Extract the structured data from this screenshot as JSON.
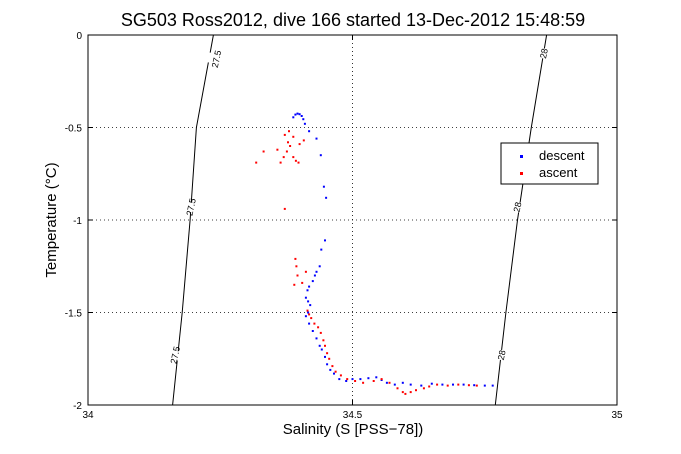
{
  "chart_data": {
    "type": "scatter",
    "title": "SG503 Ross2012, dive 166 started 13-Dec-2012 15:48:59",
    "xlabel": "Salinity (S [PSS−78])",
    "ylabel": "Temperature (°C)",
    "xlim": [
      34,
      35
    ],
    "ylim": [
      -2,
      0
    ],
    "x_ticks": [
      "34",
      "34.5",
      "35"
    ],
    "y_ticks": [
      "0",
      "-0.5",
      "-1",
      "-1.5",
      "-2"
    ],
    "grid": true,
    "legend_position": "right",
    "series": [
      {
        "name": "descent",
        "color": "#0000ff",
        "marker": "dot",
        "points": [
          [
            34.388,
            -0.445
          ],
          [
            34.392,
            -0.43
          ],
          [
            34.396,
            -0.425
          ],
          [
            34.4,
            -0.428
          ],
          [
            34.404,
            -0.438
          ],
          [
            34.407,
            -0.455
          ],
          [
            34.41,
            -0.48
          ],
          [
            34.418,
            -0.52
          ],
          [
            34.432,
            -0.56
          ],
          [
            34.44,
            -0.65
          ],
          [
            34.446,
            -0.82
          ],
          [
            34.45,
            -0.88
          ],
          [
            34.448,
            -1.11
          ],
          [
            34.441,
            -1.16
          ],
          [
            34.438,
            -1.25
          ],
          [
            34.432,
            -1.28
          ],
          [
            34.429,
            -1.3
          ],
          [
            34.425,
            -1.33
          ],
          [
            34.418,
            -1.36
          ],
          [
            34.415,
            -1.38
          ],
          [
            34.412,
            -1.42
          ],
          [
            34.416,
            -1.44
          ],
          [
            34.42,
            -1.46
          ],
          [
            34.416,
            -1.5
          ],
          [
            34.412,
            -1.52
          ],
          [
            34.418,
            -1.56
          ],
          [
            34.425,
            -1.6
          ],
          [
            34.432,
            -1.64
          ],
          [
            34.438,
            -1.68
          ],
          [
            34.442,
            -1.7
          ],
          [
            34.448,
            -1.74
          ],
          [
            34.452,
            -1.78
          ],
          [
            34.458,
            -1.81
          ],
          [
            34.465,
            -1.83
          ],
          [
            34.475,
            -1.86
          ],
          [
            34.488,
            -1.87
          ],
          [
            34.5,
            -1.86
          ],
          [
            34.515,
            -1.86
          ],
          [
            34.53,
            -1.855
          ],
          [
            34.545,
            -1.85
          ],
          [
            34.555,
            -1.865
          ],
          [
            34.565,
            -1.88
          ],
          [
            34.58,
            -1.89
          ],
          [
            34.595,
            -1.88
          ],
          [
            34.61,
            -1.89
          ],
          [
            34.63,
            -1.895
          ],
          [
            34.65,
            -1.885
          ],
          [
            34.67,
            -1.89
          ],
          [
            34.69,
            -1.89
          ],
          [
            34.71,
            -1.89
          ],
          [
            34.73,
            -1.893
          ],
          [
            34.75,
            -1.895
          ],
          [
            34.765,
            -1.895
          ]
        ]
      },
      {
        "name": "ascent",
        "color": "#ff0000",
        "marker": "dot",
        "points": [
          [
            34.364,
            -0.69
          ],
          [
            34.37,
            -0.66
          ],
          [
            34.358,
            -0.62
          ],
          [
            34.378,
            -0.58
          ],
          [
            34.372,
            -0.54
          ],
          [
            34.38,
            -0.52
          ],
          [
            34.388,
            -0.55
          ],
          [
            34.382,
            -0.6
          ],
          [
            34.376,
            -0.63
          ],
          [
            34.388,
            -0.66
          ],
          [
            34.393,
            -0.68
          ],
          [
            34.4,
            -0.59
          ],
          [
            34.318,
            -0.69
          ],
          [
            34.332,
            -0.63
          ],
          [
            34.408,
            -0.57
          ],
          [
            34.398,
            -0.69
          ],
          [
            34.372,
            -0.94
          ],
          [
            34.392,
            -1.21
          ],
          [
            34.394,
            -1.25
          ],
          [
            34.396,
            -1.3
          ],
          [
            34.39,
            -1.35
          ],
          [
            34.405,
            -1.34
          ],
          [
            34.412,
            -1.28
          ],
          [
            34.415,
            -1.49
          ],
          [
            34.418,
            -1.51
          ],
          [
            34.422,
            -1.53
          ],
          [
            34.428,
            -1.56
          ],
          [
            34.435,
            -1.58
          ],
          [
            34.44,
            -1.61
          ],
          [
            34.445,
            -1.65
          ],
          [
            34.448,
            -1.68
          ],
          [
            34.452,
            -1.72
          ],
          [
            34.456,
            -1.75
          ],
          [
            34.462,
            -1.79
          ],
          [
            34.468,
            -1.82
          ],
          [
            34.478,
            -1.84
          ],
          [
            34.49,
            -1.86
          ],
          [
            34.505,
            -1.87
          ],
          [
            34.52,
            -1.88
          ],
          [
            34.54,
            -1.87
          ],
          [
            34.555,
            -1.86
          ],
          [
            34.57,
            -1.88
          ],
          [
            34.585,
            -1.91
          ],
          [
            34.595,
            -1.93
          ],
          [
            34.6,
            -1.94
          ],
          [
            34.61,
            -1.93
          ],
          [
            34.62,
            -1.92
          ],
          [
            34.635,
            -1.91
          ],
          [
            34.645,
            -1.9
          ],
          [
            34.66,
            -1.89
          ],
          [
            34.68,
            -1.895
          ],
          [
            34.7,
            -1.89
          ],
          [
            34.72,
            -1.893
          ],
          [
            34.735,
            -1.895
          ]
        ]
      }
    ],
    "isopycnals": [
      {
        "label": "27.5",
        "points": [
          [
            34.16,
            -2.0
          ],
          [
            34.178,
            -1.5
          ],
          [
            34.193,
            -1.0
          ],
          [
            34.205,
            -0.5
          ],
          [
            34.237,
            0.0
          ]
        ],
        "label_positions": [
          [
            34.243,
            -0.13
          ],
          [
            34.195,
            -0.93
          ],
          [
            34.165,
            -1.73
          ]
        ]
      },
      {
        "label": "28",
        "points": [
          [
            34.77,
            -2.0
          ],
          [
            34.79,
            -1.5
          ],
          [
            34.812,
            -1.0
          ],
          [
            34.838,
            -0.5
          ],
          [
            34.867,
            0.0
          ]
        ],
        "label_positions": [
          [
            34.862,
            -0.1
          ],
          [
            34.812,
            -0.93
          ],
          [
            34.782,
            -1.73
          ]
        ]
      }
    ]
  }
}
